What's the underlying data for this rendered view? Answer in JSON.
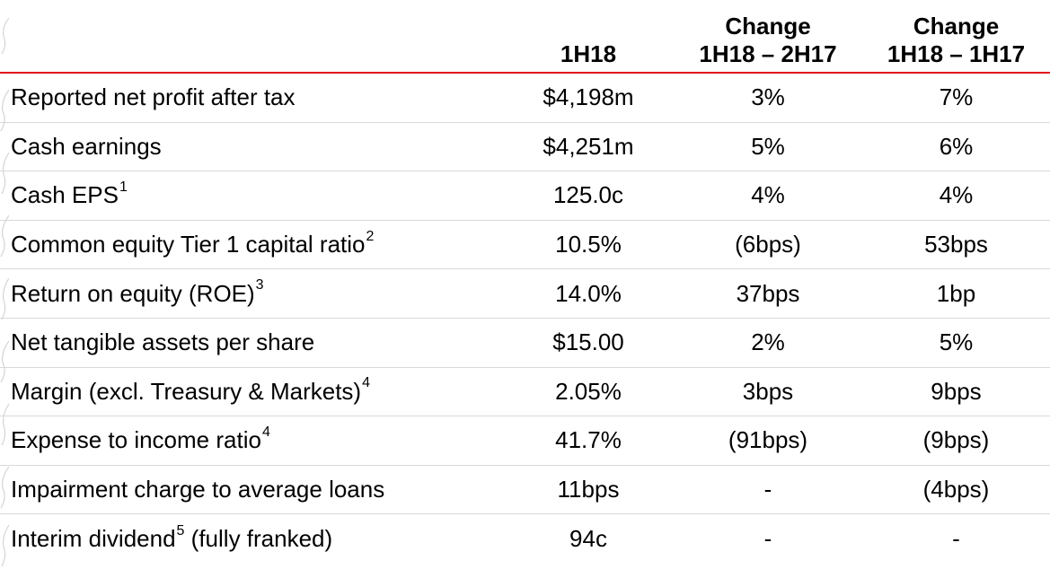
{
  "header": {
    "col1": [
      "1H18"
    ],
    "col2": [
      "Change",
      "1H18 – 2H17"
    ],
    "col3": [
      "Change",
      "1H18 – 1H17"
    ]
  },
  "rows": [
    {
      "label": "Reported net profit after tax",
      "sup": "",
      "suffix": "",
      "v1": "$4,198m",
      "v2": "3%",
      "v3": "7%"
    },
    {
      "label": "Cash earnings",
      "sup": "",
      "suffix": "",
      "v1": "$4,251m",
      "v2": "5%",
      "v3": "6%"
    },
    {
      "label": "Cash EPS",
      "sup": "1",
      "suffix": "",
      "v1": "125.0c",
      "v2": "4%",
      "v3": "4%"
    },
    {
      "label": "Common equity Tier 1 capital ratio",
      "sup": "2",
      "suffix": "",
      "v1": "10.5%",
      "v2": "(6bps)",
      "v3": "53bps"
    },
    {
      "label": "Return on equity (ROE)",
      "sup": "3",
      "suffix": "",
      "v1": "14.0%",
      "v2": "37bps",
      "v3": "1bp"
    },
    {
      "label": "Net tangible assets per share",
      "sup": "",
      "suffix": "",
      "v1": "$15.00",
      "v2": "2%",
      "v3": "5%"
    },
    {
      "label": "Margin (excl. Treasury & Markets)",
      "sup": "4",
      "suffix": "",
      "v1": "2.05%",
      "v2": "3bps",
      "v3": "9bps"
    },
    {
      "label": "Expense to income ratio",
      "sup": "4",
      "suffix": "",
      "v1": "41.7%",
      "v2": "(91bps)",
      "v3": "(9bps)"
    },
    {
      "label": "Impairment charge to average loans",
      "sup": "",
      "suffix": "",
      "v1": "11bps",
      "v2": "-",
      "v3": "(4bps)"
    },
    {
      "label": "Interim dividend",
      "sup": "5",
      "suffix": " (fully franked)",
      "v1": "94c",
      "v2": "-",
      "v3": "-"
    }
  ],
  "colors": {
    "rule": "#e3161d",
    "row_divider": "#d9d9d9",
    "text": "#000000"
  }
}
